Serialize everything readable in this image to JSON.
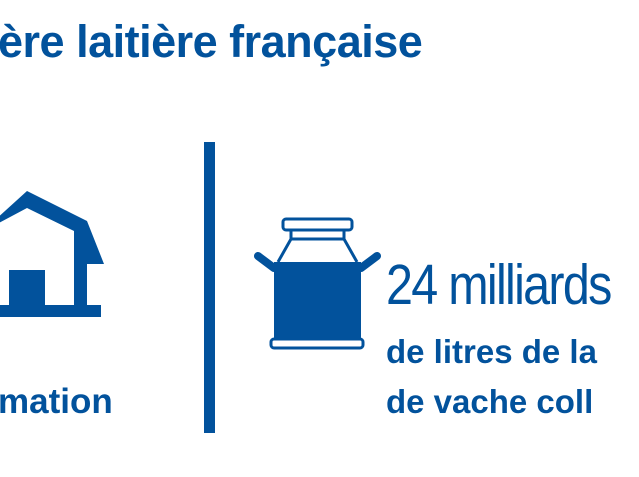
{
  "title": "ère laitière française",
  "left_stat": {
    "label": "mation",
    "icon": "barn-icon"
  },
  "right_stat": {
    "value": "24 milliards",
    "line1": "de litres de la",
    "line2": "de vache coll",
    "icon": "milk-can-icon"
  },
  "colors": {
    "brand": "#02529c",
    "background": "#ffffff"
  }
}
